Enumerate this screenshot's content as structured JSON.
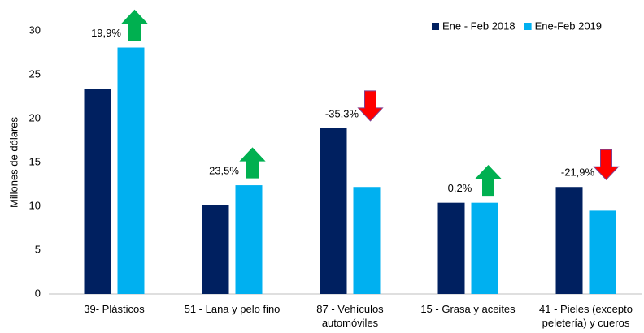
{
  "chart_data": {
    "type": "bar",
    "y_label": "Millones de dólares",
    "categories": [
      "39- Plásticos",
      "51 - Lana y pelo fino",
      "87 - Vehículos automóviles",
      "15 - Grasa y aceites",
      "41 - Pieles (excepto peletería) y cueros"
    ],
    "series": [
      {
        "name": "Ene - Feb 2018",
        "color": "#002060",
        "values": [
          23.4,
          10.1,
          18.9,
          10.4,
          12.2
        ]
      },
      {
        "name": "Ene-Feb 2019",
        "color": "#00b0f0",
        "values": [
          28.1,
          12.4,
          12.2,
          10.4,
          9.5
        ]
      }
    ],
    "annotations": [
      "19,9%",
      "23,5%",
      "-35,3%",
      "0,2%",
      "-21,9%"
    ],
    "arrow_colors": [
      "#00b050",
      "#ff0000"
    ],
    "ylim": [
      0,
      30
    ],
    "yticks": [
      0,
      5,
      10,
      15,
      20,
      25,
      30
    ],
    "legend": "top-right",
    "grid": false
  }
}
